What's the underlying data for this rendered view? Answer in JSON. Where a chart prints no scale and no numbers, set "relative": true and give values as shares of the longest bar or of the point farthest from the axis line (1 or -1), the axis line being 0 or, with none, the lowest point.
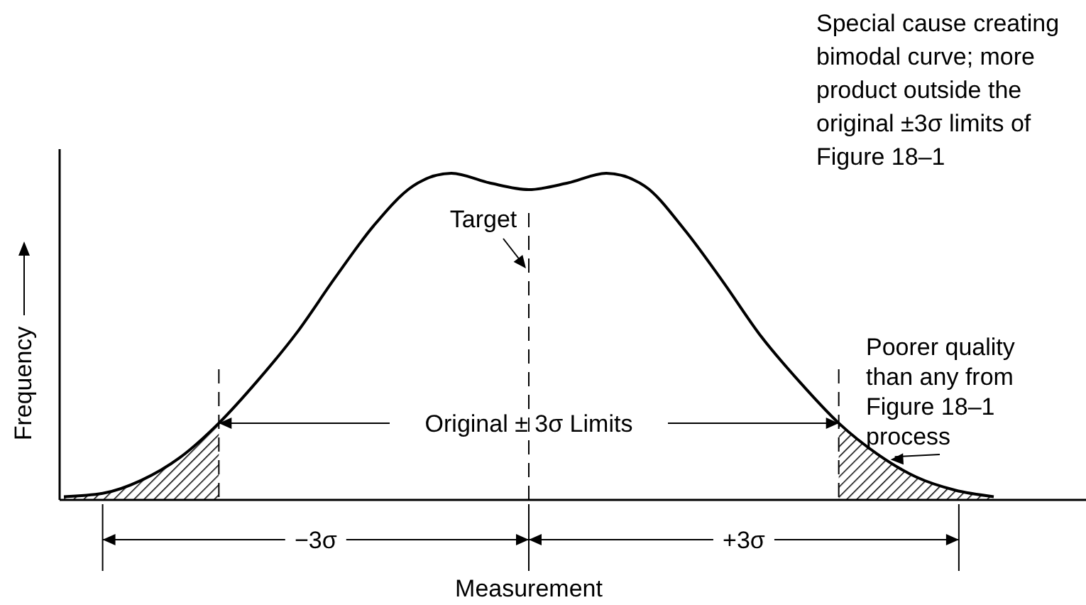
{
  "chart_data": {
    "type": "line",
    "relative": true,
    "xlabel": "Measurement",
    "ylabel": "Frequency",
    "line_style": "solid",
    "categories": [
      null,
      null,
      null,
      null,
      null,
      null,
      null,
      null,
      null,
      null,
      null,
      null,
      null,
      null,
      null,
      null,
      null,
      null,
      null,
      null,
      null,
      null,
      null,
      null,
      null
    ],
    "series": [
      {
        "color": "#000000",
        "values": [
          0.01,
          0.02,
          0.06,
          0.13,
          0.235,
          0.365,
          0.51,
          0.68,
          0.84,
          0.96,
          1,
          0.97,
          0.95,
          0.97,
          1,
          0.96,
          0.83,
          0.67,
          0.5,
          0.36,
          0.235,
          0.14,
          0.07,
          0.03,
          0.01
        ]
      },
      {
        "type": "area",
        "color": "#000000",
        "values": [
          0.01,
          0.02,
          0.06,
          0.13,
          0.235,
          null,
          null,
          null,
          null,
          null,
          null,
          null,
          null,
          null,
          null,
          null,
          null,
          null,
          null,
          null,
          0.235,
          0.14,
          0.07,
          0.03,
          0.01
        ]
      }
    ],
    "annotations": [
      "Target",
      "Original ± 3σ Limits",
      "−3σ",
      "+3σ",
      "Special cause creating bimodal curve; more product outside the original ±3σ limits of Figure 18–1",
      "Poorer quality than any from Figure 18–1 process"
    ]
  }
}
